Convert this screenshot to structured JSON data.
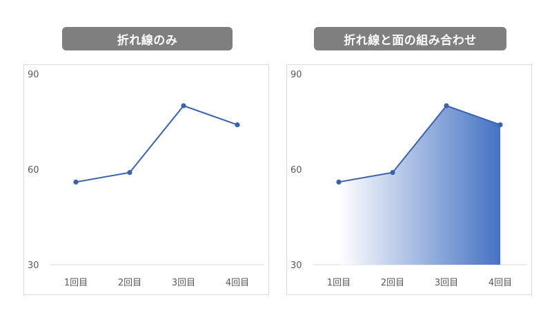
{
  "colors": {
    "line": "#3a62ad",
    "marker": "#3a62ad",
    "area_start": "#ffffff",
    "area_end": "#4472c4",
    "title_bg": "#7f7f7f",
    "axis": "#d9d9d9",
    "tick_text": "#595959"
  },
  "chart_data": [
    {
      "type": "line",
      "title": "折れ線のみ",
      "categories": [
        "1回目",
        "2回目",
        "3回目",
        "4回目"
      ],
      "values": [
        56,
        59,
        80,
        74
      ],
      "ylim": [
        30,
        90
      ],
      "yticks": [
        "30",
        "60",
        "90"
      ],
      "grid": false,
      "legend": "none"
    },
    {
      "type": "area",
      "title": "折れ線と面の組み合わせ",
      "categories": [
        "1回目",
        "2回目",
        "3回目",
        "4回目"
      ],
      "values": [
        56,
        59,
        80,
        74
      ],
      "ylim": [
        30,
        90
      ],
      "yticks": [
        "30",
        "60",
        "90"
      ],
      "grid": false,
      "legend": "none",
      "fill": "gradient-left-to-right"
    }
  ]
}
